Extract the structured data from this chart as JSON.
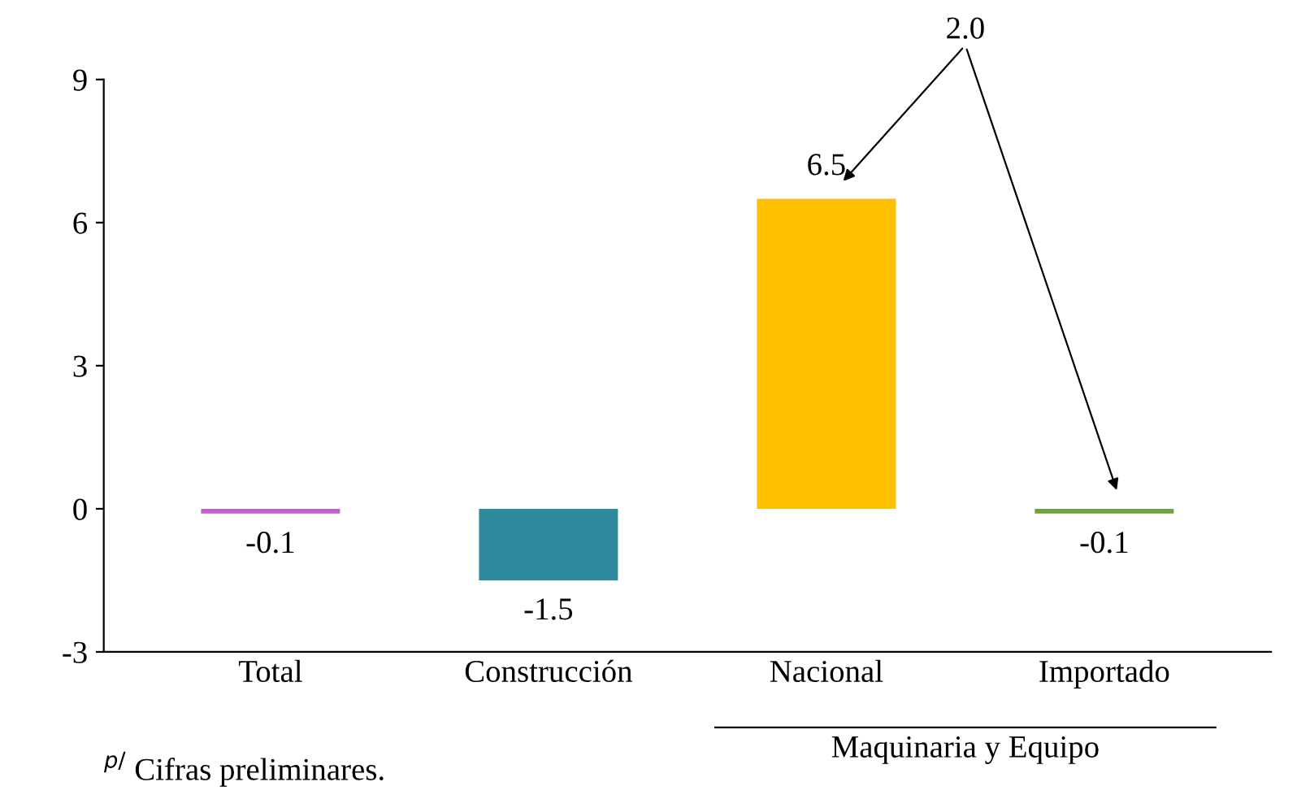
{
  "chart_data": {
    "type": "bar",
    "categories": [
      "Total",
      "Construcción",
      "Nacional",
      "Importado"
    ],
    "values": [
      -0.1,
      -1.5,
      6.5,
      -0.1
    ],
    "colors": [
      "#c060c8",
      "#2e8b9e",
      "#ffc000",
      "#70a040"
    ],
    "ylim": [
      -3,
      9
    ],
    "yticks": [
      -3,
      0,
      3,
      6,
      9
    ],
    "data_labels": true,
    "grid": false,
    "annotations": [
      "2.0",
      "Maquinaria y Equipo",
      "$^{p/}$ Cifras preliminares."
    ]
  }
}
